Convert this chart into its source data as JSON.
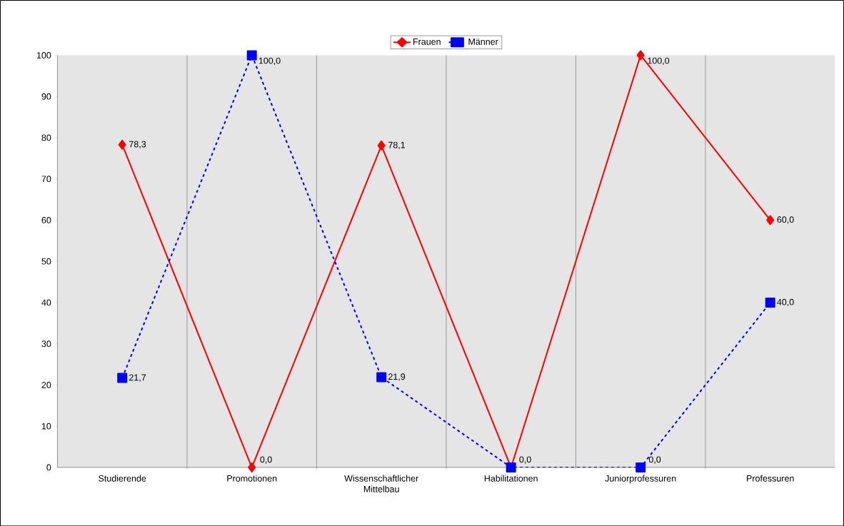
{
  "chart_data": {
    "type": "line",
    "categories": [
      "Studierende",
      "Promotionen",
      "Wissenschaftlicher Mittelbau",
      "Habilitationen",
      "Juniorprofessuren",
      "Professuren"
    ],
    "series": [
      {
        "name": "Frauen",
        "color": "#ff0000",
        "marker": "diamond",
        "line_style": "solid",
        "values": [
          78.3,
          0.0,
          78.1,
          0.0,
          100.0,
          60.0
        ],
        "value_labels": [
          "78,3",
          "0,0",
          "78,1",
          "0,0",
          "100,0",
          "60,0"
        ]
      },
      {
        "name": "Männer",
        "color": "#0000ff",
        "marker": "square",
        "line_style": "dashed",
        "values": [
          21.7,
          100.0,
          21.9,
          0.0,
          0.0,
          40.0
        ],
        "value_labels": [
          "21,7",
          "100,0",
          "21,9",
          null,
          "0,0",
          "40,0"
        ]
      }
    ],
    "ylim": [
      0,
      100
    ],
    "yticks": [
      0,
      10,
      20,
      30,
      40,
      50,
      60,
      70,
      80,
      90,
      100
    ],
    "grid": "x",
    "legend": "top"
  }
}
